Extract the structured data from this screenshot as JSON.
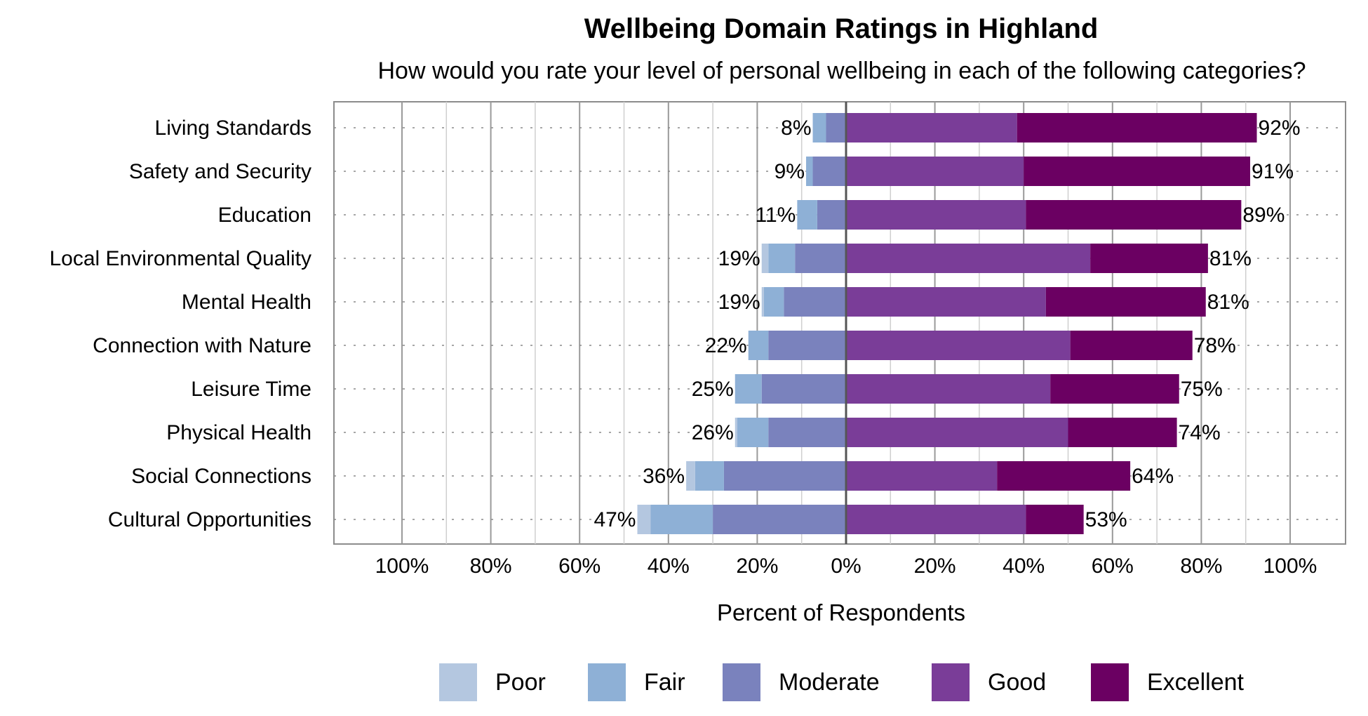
{
  "chart_data": {
    "type": "bar",
    "orientation": "horizontal",
    "stacked": "diverging",
    "title": "Wellbeing Domain Ratings in Highland",
    "subtitle": "How would you rate your level of personal wellbeing in each of the following categories?",
    "xlabel": "Percent of Respondents",
    "xlim": [
      -100,
      100
    ],
    "x_ticks": [
      "100%",
      "80%",
      "60%",
      "40%",
      "20%",
      "0%",
      "20%",
      "40%",
      "60%",
      "80%",
      "100%"
    ],
    "grid": true,
    "legend_position": "bottom",
    "categories": [
      "Living Standards",
      "Safety and Security",
      "Education",
      "Local Environmental Quality",
      "Mental Health",
      "Connection with Nature",
      "Leisure Time",
      "Physical Health",
      "Social Connections",
      "Cultural Opportunities"
    ],
    "series": [
      {
        "name": "Poor",
        "color": "#b4c7e0",
        "values": [
          0,
          0,
          0,
          1.5,
          0.5,
          0,
          0,
          0.5,
          2,
          3
        ]
      },
      {
        "name": "Fair",
        "color": "#8eb0d6",
        "values": [
          3,
          1.5,
          4.5,
          6,
          4.5,
          4.5,
          6,
          7,
          6.5,
          14
        ]
      },
      {
        "name": "Moderate",
        "color": "#7a82bd",
        "values": [
          4.5,
          7.5,
          6.5,
          11.5,
          14,
          17.5,
          19,
          17.5,
          27.5,
          30
        ]
      },
      {
        "name": "Good",
        "color": "#7a3d98",
        "values": [
          38.5,
          40,
          40.5,
          55,
          45,
          50.5,
          46,
          50,
          34,
          40.5
        ]
      },
      {
        "name": "Excellent",
        "color": "#6b0062",
        "values": [
          54,
          51,
          48.5,
          26.5,
          36,
          27.5,
          29,
          24.5,
          30,
          13
        ]
      }
    ],
    "negative_totals": [
      "8%",
      "9%",
      "11%",
      "19%",
      "19%",
      "22%",
      "25%",
      "26%",
      "36%",
      "47%"
    ],
    "positive_totals": [
      "92%",
      "91%",
      "89%",
      "81%",
      "81%",
      "78%",
      "75%",
      "74%",
      "64%",
      "53%"
    ]
  }
}
